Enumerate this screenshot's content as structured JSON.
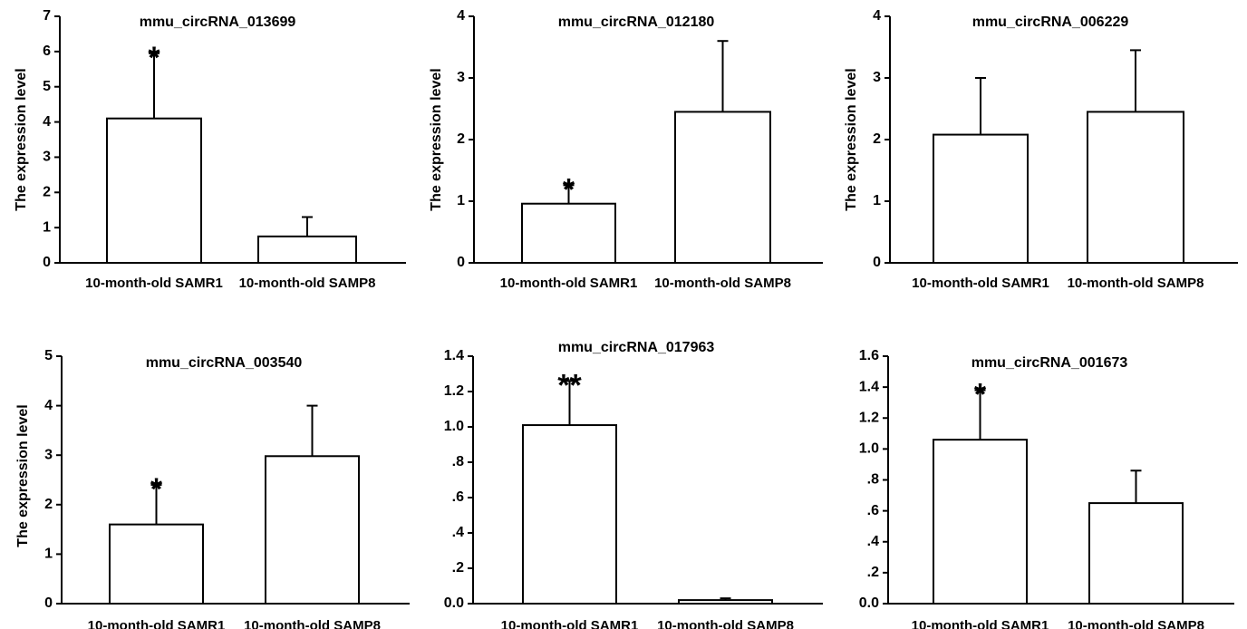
{
  "chart_data": [
    {
      "type": "bar",
      "title": "mmu_circRNA_013699",
      "ylabel": "The expression level",
      "categories": [
        "10-month-old SAMR1",
        "10-month-old SAMP8"
      ],
      "values": [
        4.1,
        0.75
      ],
      "errors": [
        1.85,
        0.55
      ],
      "significance": [
        "*",
        ""
      ],
      "ylim": [
        0,
        7
      ],
      "yticks": [
        "0",
        "1",
        "2",
        "3",
        "4",
        "5",
        "6",
        "7"
      ],
      "ytick_values": [
        0,
        1,
        2,
        3,
        4,
        5,
        6,
        7
      ]
    },
    {
      "type": "bar",
      "title": "mmu_circRNA_012180",
      "ylabel": "The expression level",
      "categories": [
        "10-month-old SAMR1",
        "10-month-old SAMP8"
      ],
      "values": [
        0.96,
        2.45
      ],
      "errors": [
        0.3,
        1.15
      ],
      "significance": [
        "*",
        ""
      ],
      "ylim": [
        0,
        4
      ],
      "yticks": [
        "0",
        "1",
        "2",
        "3",
        "4"
      ],
      "ytick_values": [
        0,
        1,
        2,
        3,
        4
      ]
    },
    {
      "type": "bar",
      "title": "mmu_circRNA_006229",
      "ylabel": "The expression level",
      "categories": [
        "10-month-old SAMR1",
        "10-month-old SAMP8"
      ],
      "values": [
        2.08,
        2.45
      ],
      "errors": [
        0.92,
        1.0
      ],
      "significance": [
        "",
        ""
      ],
      "ylim": [
        0,
        4
      ],
      "yticks": [
        "0",
        "1",
        "2",
        "3",
        "4"
      ],
      "ytick_values": [
        0,
        1,
        2,
        3,
        4
      ]
    },
    {
      "type": "bar",
      "title": "mmu_circRNA_003540",
      "ylabel": "The expression level",
      "categories": [
        "10-month-old SAMR1",
        "10-month-old SAMP8"
      ],
      "values": [
        1.6,
        2.98
      ],
      "errors": [
        0.8,
        1.02
      ],
      "significance": [
        "*",
        ""
      ],
      "ylim": [
        0,
        5
      ],
      "yticks": [
        "0",
        "1",
        "2",
        "3",
        "4",
        "5"
      ],
      "ytick_values": [
        0,
        1,
        2,
        3,
        4,
        5
      ]
    },
    {
      "type": "bar",
      "title": "mmu_circRNA_017963",
      "ylabel": "",
      "categories": [
        "10-month-old SAMR1",
        "10-month-old SAMP8"
      ],
      "values": [
        1.01,
        0.02
      ],
      "errors": [
        0.25,
        0.01
      ],
      "significance": [
        "**",
        ""
      ],
      "ylim": [
        0,
        1.4
      ],
      "yticks": [
        "0.0",
        ".2",
        ".4",
        ".6",
        ".8",
        "1.0",
        "1.2",
        "1.4"
      ],
      "ytick_values": [
        0,
        0.2,
        0.4,
        0.6,
        0.8,
        1.0,
        1.2,
        1.4
      ]
    },
    {
      "type": "bar",
      "title": "mmu_circRNA_001673",
      "ylabel": "",
      "categories": [
        "10-month-old SAMR1",
        "10-month-old SAMP8"
      ],
      "values": [
        1.06,
        0.65
      ],
      "errors": [
        0.32,
        0.21
      ],
      "significance": [
        "*",
        ""
      ],
      "ylim": [
        0,
        1.6
      ],
      "yticks": [
        "0.0",
        ".2",
        ".4",
        ".6",
        ".8",
        "1.0",
        "1.2",
        "1.4",
        "1.6"
      ],
      "ytick_values": [
        0,
        0.2,
        0.4,
        0.6,
        0.8,
        1.0,
        1.2,
        1.4,
        1.6
      ]
    }
  ]
}
